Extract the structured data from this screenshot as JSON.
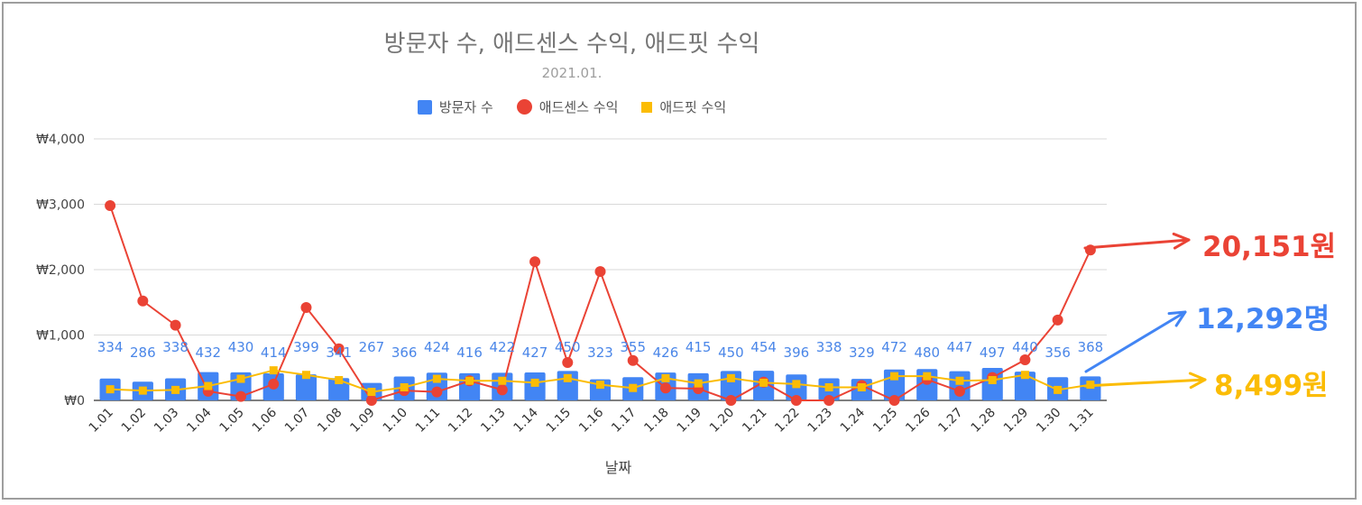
{
  "chart_data": {
    "type": "bar+line",
    "title": "방문자 수, 애드센스 수익, 애드핏 수익",
    "subtitle": "2021.01.",
    "xlabel": "날짜",
    "ylabel": "",
    "yticks": [
      "₩0",
      "₩1,000",
      "₩2,000",
      "₩3,000",
      "₩4,000"
    ],
    "ylim": [
      0,
      4000
    ],
    "grid": true,
    "legend_position": "top",
    "categories": [
      "1.01",
      "1.02",
      "1.03",
      "1.04",
      "1.05",
      "1.06",
      "1.07",
      "1.08",
      "1.09",
      "1.10",
      "1.11",
      "1.12",
      "1.13",
      "1.14",
      "1.15",
      "1.16",
      "1.17",
      "1.18",
      "1.19",
      "1.20",
      "1.21",
      "1.22",
      "1.23",
      "1.24",
      "1.25",
      "1.26",
      "1.27",
      "1.28",
      "1.29",
      "1.30",
      "1.31"
    ],
    "series": [
      {
        "name": "방문자 수",
        "type": "bar",
        "color": "#4285f4",
        "values": [
          334,
          286,
          338,
          432,
          430,
          414,
          399,
          341,
          267,
          366,
          424,
          416,
          422,
          427,
          450,
          323,
          355,
          426,
          415,
          450,
          454,
          396,
          338,
          329,
          472,
          480,
          447,
          497,
          440,
          356,
          368
        ],
        "labels": [
          "334",
          "286",
          "338",
          "432",
          "430",
          "414",
          "399",
          "341",
          "267",
          "366",
          "424",
          "416",
          "422",
          "427",
          "450",
          "323",
          "355",
          "426",
          "415",
          "450",
          "454",
          "396",
          "338",
          "329",
          "472",
          "480",
          "447",
          "497",
          "440",
          "356",
          "368"
        ]
      },
      {
        "name": "애드센스 수익",
        "type": "line",
        "color": "#ea4335",
        "values": [
          2980,
          1520,
          1150,
          140,
          60,
          250,
          1420,
          790,
          0,
          150,
          130,
          300,
          160,
          2120,
          580,
          1970,
          610,
          190,
          180,
          0,
          280,
          0,
          0,
          230,
          0,
          320,
          140,
          350,
          620,
          1230,
          2300
        ]
      },
      {
        "name": "애드핏 수익",
        "type": "line",
        "color": "#fbbc04",
        "values": [
          170,
          150,
          160,
          220,
          330,
          460,
          390,
          310,
          130,
          200,
          330,
          300,
          300,
          270,
          340,
          240,
          190,
          340,
          260,
          340,
          270,
          250,
          200,
          200,
          370,
          370,
          300,
          310,
          390,
          160,
          240
        ]
      }
    ],
    "annotations": [
      {
        "text": "20,151원",
        "color": "#ea4335",
        "series": "애드센스 수익"
      },
      {
        "text": "12,292명",
        "color": "#4285f4",
        "series": "방문자 수"
      },
      {
        "text": "8,499원",
        "color": "#fbbc04",
        "series": "애드핏 수익"
      }
    ]
  }
}
